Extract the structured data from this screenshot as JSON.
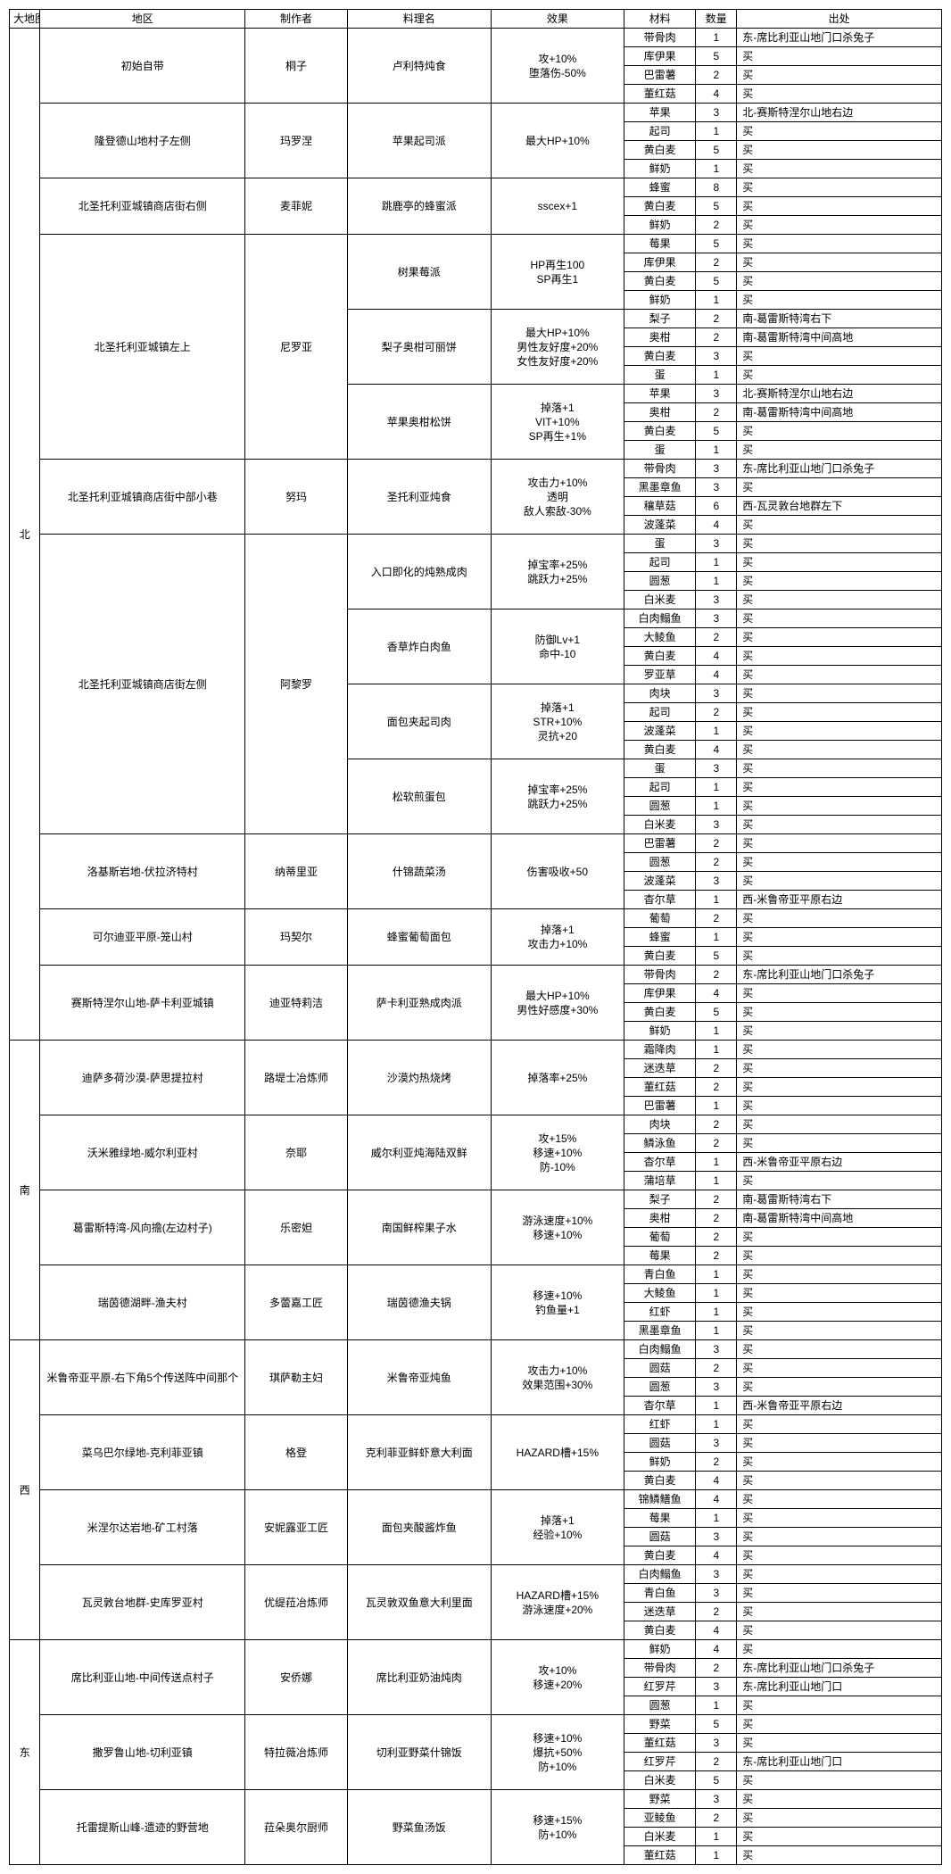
{
  "headers": [
    "大地图",
    "地区",
    "制作者",
    "料理名",
    "效果",
    "材料",
    "数量",
    "出处"
  ],
  "maps": [
    {
      "name": "北",
      "areas": [
        {
          "area": "初始自带",
          "maker": "桐子",
          "dish": "卢利特炖食",
          "effect": "攻+10%\n堕落伤-50%",
          "mats": [
            {
              "m": "带骨肉",
              "q": 1,
              "s": "东-席比利亚山地门口杀兔子"
            },
            {
              "m": "库伊果",
              "q": 5,
              "s": "买"
            },
            {
              "m": "巴雷薯",
              "q": 2,
              "s": "买"
            },
            {
              "m": "董红菇",
              "q": 4,
              "s": "买"
            }
          ]
        },
        {
          "area": "隆登德山地村子左侧",
          "maker": "玛罗涅",
          "dish": "苹果起司派",
          "effect": "最大HP+10%",
          "mats": [
            {
              "m": "苹果",
              "q": 3,
              "s": "北-赛斯特涅尔山地右边"
            },
            {
              "m": "起司",
              "q": 1,
              "s": "买"
            },
            {
              "m": "黄白麦",
              "q": 5,
              "s": "买"
            },
            {
              "m": "鲜奶",
              "q": 1,
              "s": "买"
            }
          ]
        },
        {
          "area": "北圣托利亚城镇商店街右侧",
          "maker": "麦菲妮",
          "dish": "跳鹿亭的蜂蜜派",
          "effect": "sscex+1",
          "mats": [
            {
              "m": "蜂蜜",
              "q": 8,
              "s": "买"
            },
            {
              "m": "黄白麦",
              "q": 5,
              "s": "买"
            },
            {
              "m": "鲜奶",
              "q": 2,
              "s": "买"
            }
          ]
        },
        {
          "area": "北圣托利亚城镇左上",
          "maker": "尼罗亚",
          "dishes": [
            {
              "dish": "树果莓派",
              "effect": "HP再生100\nSP再生1",
              "mats": [
                {
                  "m": "莓果",
                  "q": 5,
                  "s": "买"
                },
                {
                  "m": "库伊果",
                  "q": 2,
                  "s": "买"
                },
                {
                  "m": "黄白麦",
                  "q": 5,
                  "s": "买"
                },
                {
                  "m": "鲜奶",
                  "q": 1,
                  "s": "买"
                }
              ]
            },
            {
              "dish": "梨子奥柑可丽饼",
              "effect": "最大HP+10%\n男性友好度+20%\n女性友好度+20%",
              "mats": [
                {
                  "m": "梨子",
                  "q": 2,
                  "s": "南-葛雷斯特湾右下"
                },
                {
                  "m": "奥柑",
                  "q": 2,
                  "s": "南-葛雷斯特湾中间高地"
                },
                {
                  "m": "黄白麦",
                  "q": 3,
                  "s": "买"
                },
                {
                  "m": "蛋",
                  "q": 1,
                  "s": "买"
                }
              ]
            },
            {
              "dish": "苹果奥柑松饼",
              "effect": "掉落+1\nVIT+10%\nSP再生+1%",
              "mats": [
                {
                  "m": "苹果",
                  "q": 3,
                  "s": "北-赛斯特涅尔山地右边"
                },
                {
                  "m": "奥柑",
                  "q": 2,
                  "s": "南-葛雷斯特湾中间高地"
                },
                {
                  "m": "黄白麦",
                  "q": 5,
                  "s": "买"
                },
                {
                  "m": "蛋",
                  "q": 1,
                  "s": "买"
                }
              ]
            }
          ]
        },
        {
          "area": "北圣托利亚城镇商店街中部小巷",
          "maker": "努玛",
          "dish": "圣托利亚炖食",
          "effect": "攻击力+10%\n透明\n敌人索敌-30%",
          "mats": [
            {
              "m": "带骨肉",
              "q": 3,
              "s": "东-席比利亚山地门口杀兔子"
            },
            {
              "m": "黑墨章鱼",
              "q": 3,
              "s": "买"
            },
            {
              "m": "穰草菇",
              "q": 6,
              "s": "西-瓦灵敦台地群左下"
            },
            {
              "m": "波蓬菜",
              "q": 4,
              "s": "买"
            }
          ]
        },
        {
          "area": "北圣托利亚城镇商店街左侧",
          "maker": "阿黎罗",
          "dishes": [
            {
              "dish": "入口即化的炖熟成肉",
              "effect": "掉宝率+25%\n跳跃力+25%",
              "mats": [
                {
                  "m": "蛋",
                  "q": 3,
                  "s": "买"
                },
                {
                  "m": "起司",
                  "q": 1,
                  "s": "买"
                },
                {
                  "m": "圆葱",
                  "q": 1,
                  "s": "买"
                },
                {
                  "m": "白米麦",
                  "q": 3,
                  "s": "买"
                }
              ]
            },
            {
              "dish": "香草炸白肉鱼",
              "effect": "防御Lv+1\n命中-10",
              "mats": [
                {
                  "m": "白肉鳎鱼",
                  "q": 3,
                  "s": "买"
                },
                {
                  "m": "大鲮鱼",
                  "q": 2,
                  "s": "买"
                },
                {
                  "m": "黄白麦",
                  "q": 4,
                  "s": "买"
                },
                {
                  "m": "罗亚草",
                  "q": 4,
                  "s": "买"
                }
              ]
            },
            {
              "dish": "面包夹起司肉",
              "effect": "掉落+1\nSTR+10%\n灵抗+20",
              "mats": [
                {
                  "m": "肉块",
                  "q": 3,
                  "s": "买"
                },
                {
                  "m": "起司",
                  "q": 2,
                  "s": "买"
                },
                {
                  "m": "波蓬菜",
                  "q": 1,
                  "s": "买"
                },
                {
                  "m": "黄白麦",
                  "q": 4,
                  "s": "买"
                }
              ]
            },
            {
              "dish": "松软煎蛋包",
              "effect": "掉宝率+25%\n跳跃力+25%",
              "mats": [
                {
                  "m": "蛋",
                  "q": 3,
                  "s": "买"
                },
                {
                  "m": "起司",
                  "q": 1,
                  "s": "买"
                },
                {
                  "m": "圆葱",
                  "q": 1,
                  "s": "买"
                },
                {
                  "m": "白米麦",
                  "q": 3,
                  "s": "买"
                }
              ]
            }
          ]
        },
        {
          "area": "洛基斯岩地-伏拉济特村",
          "maker": "纳蒂里亚",
          "dish": "什锦蔬菜汤",
          "effect": "伤害吸收+50",
          "mats": [
            {
              "m": "巴雷薯",
              "q": 2,
              "s": "买"
            },
            {
              "m": "圆葱",
              "q": 2,
              "s": "买"
            },
            {
              "m": "波蓬菜",
              "q": 3,
              "s": "买"
            },
            {
              "m": "杳尔草",
              "q": 1,
              "s": "西-米鲁帝亚平原右边"
            }
          ]
        },
        {
          "area": "可尔迪亚平原-笼山村",
          "maker": "玛契尔",
          "dish": "蜂蜜葡萄面包",
          "effect": "掉落+1\n攻击力+10%",
          "mats": [
            {
              "m": "葡萄",
              "q": 2,
              "s": "买"
            },
            {
              "m": "蜂蜜",
              "q": 1,
              "s": "买"
            },
            {
              "m": "黄白麦",
              "q": 5,
              "s": "买"
            }
          ]
        },
        {
          "area": "赛斯特涅尔山地-萨卡利亚城镇",
          "maker": "迪亚特莉洁",
          "dish": "萨卡利亚熟成肉派",
          "effect": "最大HP+10%\n男性好感度+30%",
          "mats": [
            {
              "m": "带骨肉",
              "q": 2,
              "s": "东-席比利亚山地门口杀兔子"
            },
            {
              "m": "库伊果",
              "q": 4,
              "s": "买"
            },
            {
              "m": "黄白麦",
              "q": 5,
              "s": "买"
            },
            {
              "m": "鲜奶",
              "q": 1,
              "s": "买"
            }
          ]
        }
      ]
    },
    {
      "name": "南",
      "areas": [
        {
          "area": "迪萨多荷沙漠-萨思提拉村",
          "maker": "路堤士冶炼师",
          "dish": "沙漠灼热烧烤",
          "effect": "掉落率+25%",
          "mats": [
            {
              "m": "霜降肉",
              "q": 1,
              "s": "买"
            },
            {
              "m": "迷迭草",
              "q": 2,
              "s": "买"
            },
            {
              "m": "董红菇",
              "q": 2,
              "s": "买"
            },
            {
              "m": "巴雷薯",
              "q": 1,
              "s": "买"
            }
          ]
        },
        {
          "area": "沃米雅绿地-威尔利亚村",
          "maker": "奈耶",
          "dish": "威尔利亚炖海陆双鲜",
          "effect": "攻+15%\n移速+10%\n防-10%",
          "mats": [
            {
              "m": "肉块",
              "q": 2,
              "s": "买"
            },
            {
              "m": "鳞泳鱼",
              "q": 2,
              "s": "买"
            },
            {
              "m": "杳尔草",
              "q": 1,
              "s": "西-米鲁帝亚平原右边"
            },
            {
              "m": "蒲培草",
              "q": 1,
              "s": "买"
            }
          ]
        },
        {
          "area": "葛雷斯特湾-风向擔(左边村子)",
          "maker": "乐密妲",
          "dish": "南国鲜榨果子水",
          "effect": "游泳速度+10%\n移速+10%",
          "mats": [
            {
              "m": "梨子",
              "q": 2,
              "s": "南-葛雷斯特湾右下"
            },
            {
              "m": "奥柑",
              "q": 2,
              "s": "南-葛雷斯特湾中间高地"
            },
            {
              "m": "葡萄",
              "q": 2,
              "s": "买"
            },
            {
              "m": "莓果",
              "q": 2,
              "s": "买"
            }
          ]
        },
        {
          "area": "瑞茵德湖畔-渔夫村",
          "maker": "多蕾嘉工匠",
          "dish": "瑞茵德渔夫锅",
          "effect": "移速+10%\n钓鱼量+1",
          "mats": [
            {
              "m": "青白鱼",
              "q": 1,
              "s": "买"
            },
            {
              "m": "大鲮鱼",
              "q": 1,
              "s": "买"
            },
            {
              "m": "红虾",
              "q": 1,
              "s": "买"
            },
            {
              "m": "黑墨章鱼",
              "q": 1,
              "s": "买"
            }
          ]
        }
      ]
    },
    {
      "name": "西",
      "areas": [
        {
          "area": "米鲁帝亚平原-右下角5个传送阵中间那个",
          "maker": "琪萨勒主妇",
          "dish": "米鲁帝亚炖鱼",
          "effect": "攻击力+10%\n效果范围+30%",
          "mats": [
            {
              "m": "白肉鳎鱼",
              "q": 3,
              "s": "买"
            },
            {
              "m": "圆菇",
              "q": 2,
              "s": "买"
            },
            {
              "m": "圆葱",
              "q": 3,
              "s": "买"
            },
            {
              "m": "杳尔草",
              "q": 1,
              "s": "西-米鲁帝亚平原右边"
            }
          ]
        },
        {
          "area": "菜乌巴尔绿地-克利菲亚镇",
          "maker": "格登",
          "dish": "克利菲亚鲜虾意大利面",
          "effect": "HAZARD槽+15%",
          "mats": [
            {
              "m": "红虾",
              "q": 1,
              "s": "买"
            },
            {
              "m": "圆菇",
              "q": 3,
              "s": "买"
            },
            {
              "m": "鲜奶",
              "q": 2,
              "s": "买"
            },
            {
              "m": "黄白麦",
              "q": 4,
              "s": "买"
            }
          ]
        },
        {
          "area": "米涅尔达岩地-矿工村落",
          "maker": "安妮露亚工匠",
          "dish": "面包夹酸酱炸鱼",
          "effect": "掉落+1\n经验+10%",
          "mats": [
            {
              "m": "锦鳞鳝鱼",
              "q": 4,
              "s": "买"
            },
            {
              "m": "莓果",
              "q": 1,
              "s": "买"
            },
            {
              "m": "圆菇",
              "q": 3,
              "s": "买"
            },
            {
              "m": "黄白麦",
              "q": 4,
              "s": "买"
            }
          ]
        },
        {
          "area": "瓦灵敦台地群-史库罗亚村",
          "maker": "优缇菈冶炼师",
          "dish": "瓦灵敦双鱼意大利里面",
          "effect": "HAZARD槽+15%\n游泳速度+20%",
          "mats": [
            {
              "m": "白肉鳎鱼",
              "q": 3,
              "s": "买"
            },
            {
              "m": "青白鱼",
              "q": 3,
              "s": "买"
            },
            {
              "m": "迷迭草",
              "q": 2,
              "s": "买"
            },
            {
              "m": "黄白麦",
              "q": 4,
              "s": "买"
            }
          ]
        }
      ]
    },
    {
      "name": "东",
      "areas": [
        {
          "area": "席比利亚山地-中间传送点村子",
          "maker": "安侨娜",
          "dish": "席比利亚奶油炖肉",
          "effect": "攻+10%\n移速+20%",
          "mats": [
            {
              "m": "鲜奶",
              "q": 4,
              "s": "买"
            },
            {
              "m": "带骨肉",
              "q": 2,
              "s": "东-席比利亚山地门口杀兔子"
            },
            {
              "m": "红罗芹",
              "q": 3,
              "s": "东-席比利亚山地门口"
            },
            {
              "m": "圆葱",
              "q": 1,
              "s": "买"
            }
          ]
        },
        {
          "area": "撒罗鲁山地-切利亚镇",
          "maker": "特拉薇冶炼师",
          "dish": "切利亚野菜什锦饭",
          "effect": "移速+10%\n爆抗+50%\n防+10%",
          "mats": [
            {
              "m": "野菜",
              "q": 5,
              "s": "买"
            },
            {
              "m": "董红菇",
              "q": 3,
              "s": "买"
            },
            {
              "m": "红罗芹",
              "q": 2,
              "s": "东-席比利亚山地门口"
            },
            {
              "m": "白米麦",
              "q": 5,
              "s": "买"
            }
          ]
        },
        {
          "area": "托雷提斯山峰-遗迹的野营地",
          "maker": "菈朵奥尔厨师",
          "dish": "野菜鱼汤饭",
          "effect": "移速+15%\n防+10%",
          "mats": [
            {
              "m": "野菜",
              "q": 3,
              "s": "买"
            },
            {
              "m": "亚鲮鱼",
              "q": 2,
              "s": "买"
            },
            {
              "m": "白米麦",
              "q": 1,
              "s": "买"
            },
            {
              "m": "董红菇",
              "q": 1,
              "s": "买"
            }
          ]
        }
      ]
    }
  ]
}
